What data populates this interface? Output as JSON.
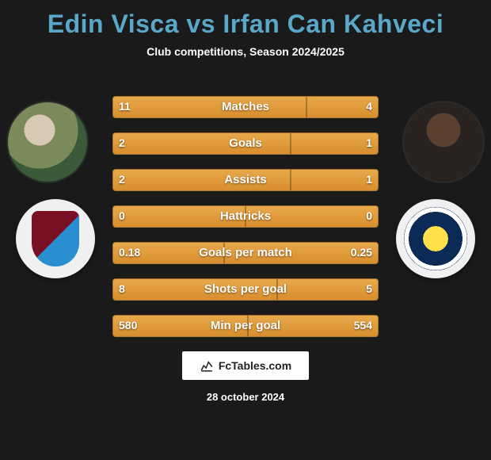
{
  "title": {
    "player1": "Edin Visca",
    "vs": "vs",
    "player2": "Irfan Can Kahveci",
    "color": "#5aa8c9"
  },
  "subtitle": "Club competitions, Season 2024/2025",
  "bar_color_start": "#e8a94a",
  "bar_color_end": "#d88e2e",
  "background_color": "#1a1a1a",
  "rows": [
    {
      "label": "Matches",
      "left": "11",
      "right": "4",
      "lw": 73,
      "rw": 27
    },
    {
      "label": "Goals",
      "left": "2",
      "right": "1",
      "lw": 67,
      "rw": 33
    },
    {
      "label": "Assists",
      "left": "2",
      "right": "1",
      "lw": 67,
      "rw": 33
    },
    {
      "label": "Hattricks",
      "left": "0",
      "right": "0",
      "lw": 50,
      "rw": 50
    },
    {
      "label": "Goals per match",
      "left": "0.18",
      "right": "0.25",
      "lw": 42,
      "rw": 58
    },
    {
      "label": "Shots per goal",
      "left": "8",
      "right": "5",
      "lw": 62,
      "rw": 38
    },
    {
      "label": "Min per goal",
      "left": "580",
      "right": "554",
      "lw": 51,
      "rw": 49
    }
  ],
  "footer_brand": "FcTables.com",
  "date": "28 october 2024"
}
